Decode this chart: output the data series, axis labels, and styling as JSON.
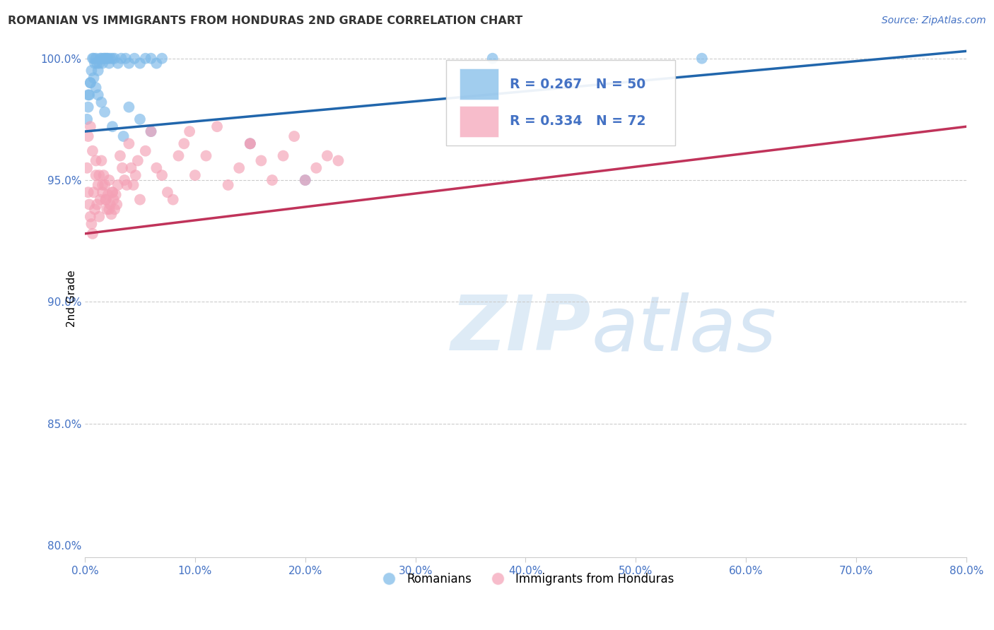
{
  "title": "ROMANIAN VS IMMIGRANTS FROM HONDURAS 2ND GRADE CORRELATION CHART",
  "source": "Source: ZipAtlas.com",
  "ylabel": "2nd Grade",
  "xlim": [
    0.0,
    0.8
  ],
  "ylim": [
    0.795,
    1.008
  ],
  "legend_r_blue": "R = 0.267",
  "legend_n_blue": "N = 50",
  "legend_r_pink": "R = 0.334",
  "legend_n_pink": "N = 72",
  "blue_color": "#7ab8e8",
  "pink_color": "#f4a0b5",
  "blue_line_color": "#2166ac",
  "pink_line_color": "#c0335a",
  "legend_text_color": "#4472c4",
  "tick_color": "#4472c4",
  "grid_color": "#cccccc",
  "title_color": "#333333",
  "source_color": "#4472c4",
  "blue_x": [
    0.002,
    0.003,
    0.004,
    0.005,
    0.006,
    0.007,
    0.008,
    0.009,
    0.01,
    0.011,
    0.012,
    0.013,
    0.014,
    0.015,
    0.016,
    0.017,
    0.018,
    0.019,
    0.02,
    0.021,
    0.022,
    0.023,
    0.025,
    0.027,
    0.03,
    0.033,
    0.037,
    0.04,
    0.045,
    0.05,
    0.055,
    0.06,
    0.065,
    0.07,
    0.04,
    0.05,
    0.06,
    0.15,
    0.2,
    0.37,
    0.56,
    0.003,
    0.005,
    0.008,
    0.01,
    0.012,
    0.015,
    0.018,
    0.025,
    0.035
  ],
  "blue_y": [
    0.975,
    0.98,
    0.985,
    0.99,
    0.995,
    1.0,
    1.0,
    0.998,
    1.0,
    0.998,
    0.995,
    0.998,
    1.0,
    1.0,
    0.998,
    1.0,
    1.0,
    1.0,
    1.0,
    1.0,
    0.998,
    1.0,
    1.0,
    1.0,
    0.998,
    1.0,
    1.0,
    0.998,
    1.0,
    0.998,
    1.0,
    1.0,
    0.998,
    1.0,
    0.98,
    0.975,
    0.97,
    0.965,
    0.95,
    1.0,
    1.0,
    0.985,
    0.99,
    0.992,
    0.988,
    0.985,
    0.982,
    0.978,
    0.972,
    0.968
  ],
  "pink_x": [
    0.002,
    0.003,
    0.004,
    0.005,
    0.006,
    0.007,
    0.008,
    0.009,
    0.01,
    0.011,
    0.012,
    0.013,
    0.014,
    0.015,
    0.016,
    0.017,
    0.018,
    0.019,
    0.02,
    0.021,
    0.022,
    0.023,
    0.024,
    0.025,
    0.026,
    0.027,
    0.028,
    0.029,
    0.03,
    0.032,
    0.034,
    0.036,
    0.038,
    0.04,
    0.042,
    0.044,
    0.046,
    0.048,
    0.05,
    0.055,
    0.06,
    0.065,
    0.07,
    0.075,
    0.08,
    0.085,
    0.09,
    0.095,
    0.1,
    0.11,
    0.12,
    0.13,
    0.14,
    0.15,
    0.16,
    0.17,
    0.18,
    0.19,
    0.2,
    0.21,
    0.22,
    0.23,
    0.003,
    0.005,
    0.007,
    0.01,
    0.013,
    0.016,
    0.019,
    0.022,
    0.025,
    0.15
  ],
  "pink_y": [
    0.955,
    0.945,
    0.94,
    0.935,
    0.932,
    0.928,
    0.945,
    0.938,
    0.952,
    0.94,
    0.948,
    0.935,
    0.942,
    0.958,
    0.945,
    0.952,
    0.948,
    0.942,
    0.938,
    0.944,
    0.95,
    0.94,
    0.936,
    0.945,
    0.942,
    0.938,
    0.944,
    0.94,
    0.948,
    0.96,
    0.955,
    0.95,
    0.948,
    0.965,
    0.955,
    0.948,
    0.952,
    0.958,
    0.942,
    0.962,
    0.97,
    0.955,
    0.952,
    0.945,
    0.942,
    0.96,
    0.965,
    0.97,
    0.952,
    0.96,
    0.972,
    0.948,
    0.955,
    0.965,
    0.958,
    0.95,
    0.96,
    0.968,
    0.95,
    0.955,
    0.96,
    0.958,
    0.968,
    0.972,
    0.962,
    0.958,
    0.952,
    0.948,
    0.942,
    0.938,
    0.945,
    0.965
  ]
}
